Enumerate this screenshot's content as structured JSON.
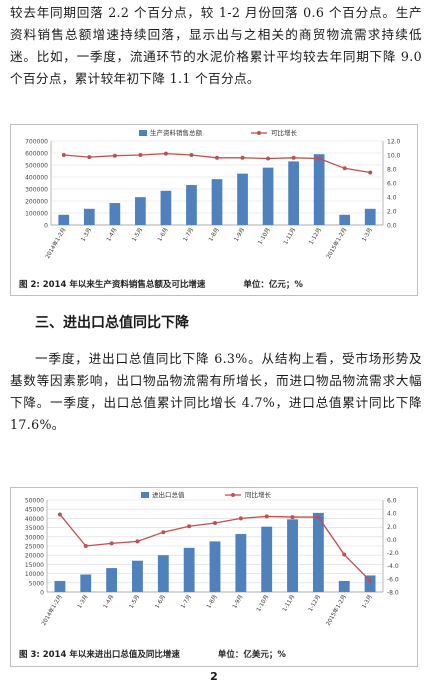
{
  "paragraph1": "较去年同期回落 2.2 个百分点，较 1-2 月份回落 0.6 个百分点。生产资料销售总额增速持续回落，显示出与之相关的商贸物流需求持续低迷。比如，一季度，流通环节的水泥价格累计平均较去年同期下降 9.0 个百分点，累计较年初下降 1.1 个百分点。",
  "section_heading": "三、进出口总值同比下降",
  "paragraph2": "一季度，进出口总值同比下降 6.3%。从结构上看，受市场形势及基数等因素影响，出口物品物流需有所增长，而进口物品物流需求大幅下降。一季度，出口总值累计同比增长 4.7%，进口总值累计同比下降 17.6%。",
  "page_number": "2",
  "colors": {
    "bar": "#4f81bd",
    "line": "#c0504d"
  },
  "chart_data": [
    {
      "type": "bar+line",
      "caption": "图 2: 2014 年以来生产资料销售总额及可比增速",
      "unit": "单位：亿元；%",
      "categories": [
        "2014年1-2月",
        "1-3月",
        "1-4月",
        "1-5月",
        "1-6月",
        "1-7月",
        "1-8月",
        "1-9月",
        "1-10月",
        "1-11月",
        "1-12月",
        "2015年1-2月",
        "1-3月"
      ],
      "series": [
        {
          "name": "生产资料销售总额",
          "axis": "left",
          "values": [
            85000,
            135000,
            183000,
            232000,
            285000,
            333000,
            382000,
            428000,
            478000,
            530000,
            590000,
            85000,
            135000
          ]
        },
        {
          "name": "可比增长",
          "axis": "right",
          "values": [
            10.0,
            9.7,
            9.9,
            10.0,
            10.2,
            10.0,
            9.6,
            9.6,
            9.5,
            9.6,
            9.5,
            8.1,
            7.5
          ]
        }
      ],
      "y_left": {
        "ticks": [
          "0",
          "100000",
          "200000",
          "300000",
          "400000",
          "500000",
          "600000",
          "700000"
        ],
        "range": [
          0,
          700000
        ]
      },
      "y_right": {
        "ticks": [
          "0.0",
          "2.0",
          "4.0",
          "6.0",
          "8.0",
          "10.0",
          "12.0"
        ],
        "range": [
          0,
          12
        ]
      },
      "legend": "top"
    },
    {
      "type": "bar+line",
      "caption": "图 3: 2014 年以来进出口总值及同比增速",
      "unit": "单位：亿美元；%",
      "categories": [
        "2014年1-2月",
        "1-3月",
        "1-4月",
        "1-5月",
        "1-6月",
        "1-7月",
        "1-8月",
        "1-9月",
        "1-10月",
        "1-11月",
        "1-12月",
        "2015年1-2月",
        "1-3月"
      ],
      "series": [
        {
          "name": "进出口总值",
          "axis": "left",
          "values": [
            6000,
            9500,
            13000,
            17000,
            20000,
            24000,
            27500,
            31500,
            35500,
            39500,
            43000,
            6000,
            9000
          ]
        },
        {
          "name": "同比增长",
          "axis": "right",
          "values": [
            3.8,
            -1.0,
            -0.6,
            -0.3,
            1.1,
            2.0,
            2.5,
            3.2,
            3.5,
            3.4,
            3.4,
            -2.3,
            -6.3
          ]
        }
      ],
      "y_left": {
        "ticks": [
          "0",
          "5000",
          "10000",
          "15000",
          "20000",
          "25000",
          "30000",
          "35000",
          "40000",
          "45000",
          "50000"
        ],
        "range": [
          0,
          50000
        ]
      },
      "y_right": {
        "ticks": [
          "-8.0",
          "-6.0",
          "-4.0",
          "-2.0",
          "0.0",
          "2.0",
          "4.0",
          "6.0"
        ],
        "range": [
          -8,
          6
        ]
      },
      "legend": "top"
    }
  ]
}
